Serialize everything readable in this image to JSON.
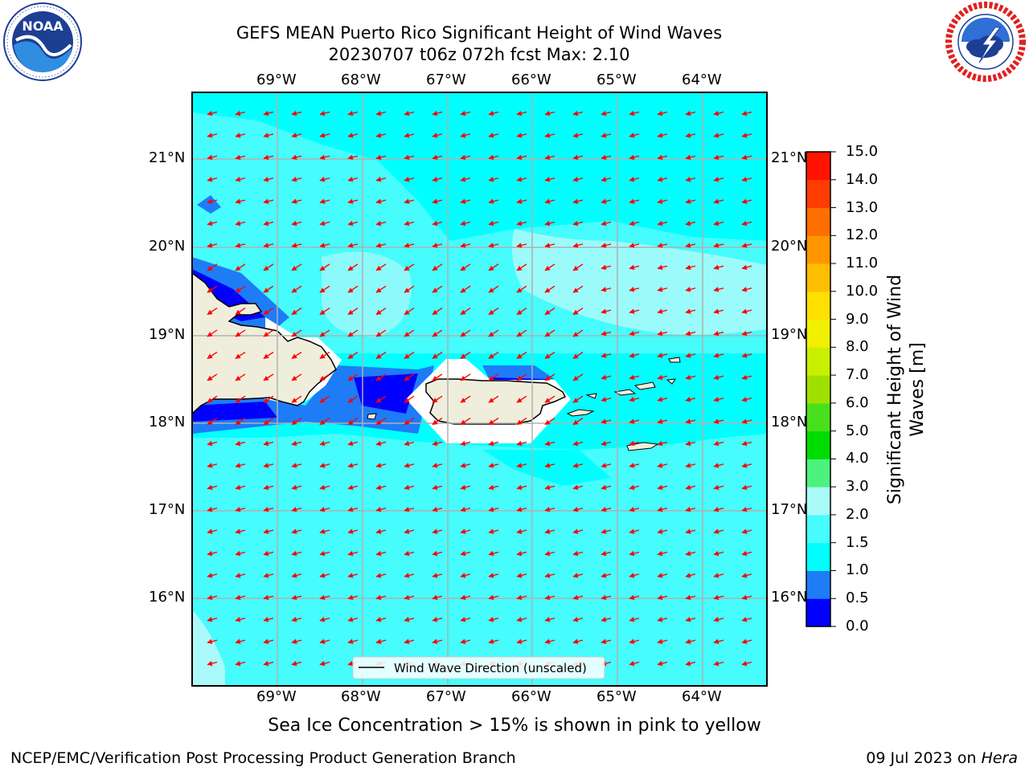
{
  "header": {
    "title_line1": "GEFS MEAN Puerto Rico Significant Height of Wind Waves",
    "title_line2": "20230707 t06z 072h fcst   Max: 2.10"
  },
  "logos": {
    "left": {
      "name": "noaa-logo",
      "text": "NOAA",
      "ring_text": "NATIONAL OCEANIC AND ATMOSPHERIC ADMINISTRATION · U.S. DEPARTMENT OF COMMERCE"
    },
    "right": {
      "name": "nws-logo",
      "ring_text": "NATIONAL WEATHER SERVICE"
    }
  },
  "map": {
    "lon_labels": [
      "69°W",
      "68°W",
      "67°W",
      "66°W",
      "65°W",
      "64°W"
    ],
    "lat_labels": [
      "21°N",
      "20°N",
      "19°N",
      "18°N",
      "17°N",
      "16°N"
    ],
    "lon_range": [
      -70.0,
      -63.25
    ],
    "lat_range": [
      15.0,
      21.75
    ],
    "legend_label": "Wind Wave Direction (unscaled)",
    "wind_direction": "east-to-west (easterly trades)"
  },
  "colorbar": {
    "label": "Significant Height of Wind Waves [m]",
    "ticks": [
      "15.0",
      "14.0",
      "13.0",
      "12.0",
      "11.0",
      "10.0",
      "9.0",
      "8.0",
      "7.0",
      "6.0",
      "5.0",
      "4.0",
      "3.0",
      "2.0",
      "1.5",
      "1.0",
      "0.5",
      "0.0"
    ],
    "bins": [
      {
        "color": "#0000ff"
      },
      {
        "color": "#1e7cf7"
      },
      {
        "color": "#00ffff"
      },
      {
        "color": "#46fcfc"
      },
      {
        "color": "#aafafa"
      },
      {
        "color": "#4cf27e"
      },
      {
        "color": "#00dc00"
      },
      {
        "color": "#48e01c"
      },
      {
        "color": "#a0e000"
      },
      {
        "color": "#c8f000"
      },
      {
        "color": "#f0f000"
      },
      {
        "color": "#ffe000"
      },
      {
        "color": "#ffbe00"
      },
      {
        "color": "#ff9600"
      },
      {
        "color": "#ff6e00"
      },
      {
        "color": "#ff3c00"
      },
      {
        "color": "#ff1400"
      }
    ]
  },
  "footer": {
    "note": "Sea Ice Concentration > 15% is shown in pink to yellow",
    "credit_left": "NCEP/EMC/Verification Post Processing Product Generation Branch",
    "date": "09 Jul 2023 on ",
    "machine": "Hera"
  },
  "colors": {
    "ocean_main": "#46fcfc",
    "ocean_light": "#aafafa",
    "ocean_cyan": "#00ffff",
    "shallow_blue": "#1e7cf7",
    "deep_blue": "#0000ff",
    "land": "#efeedc",
    "arrow": "#ff0000"
  }
}
